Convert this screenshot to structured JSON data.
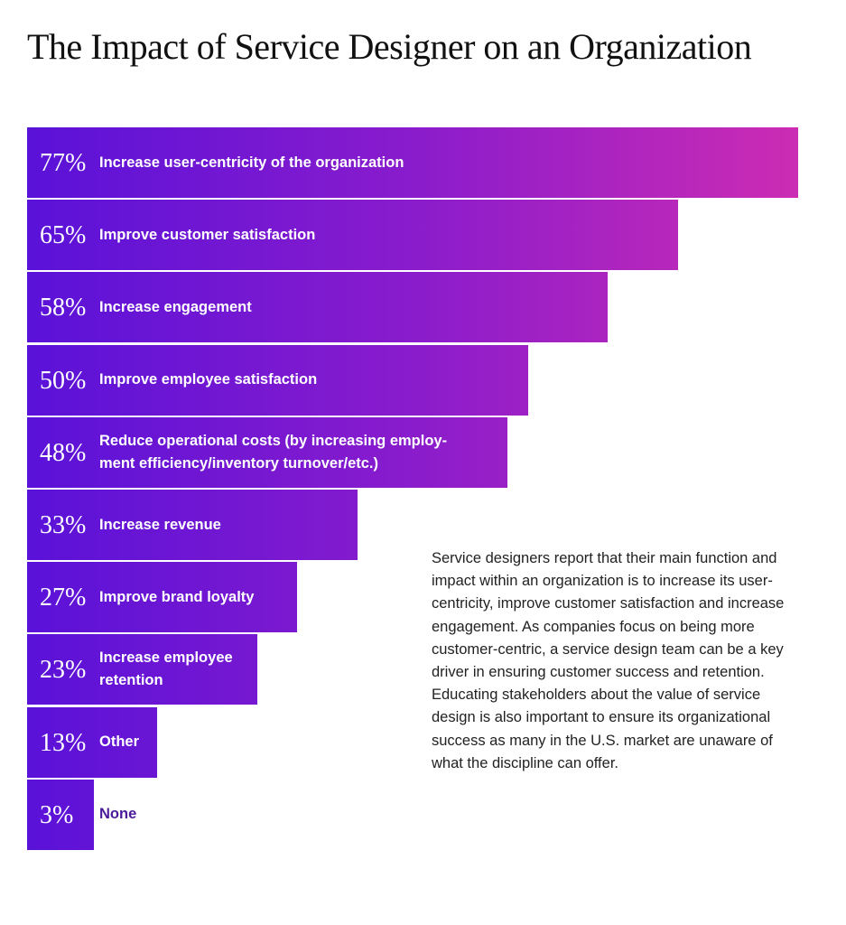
{
  "chart_data": {
    "type": "bar",
    "orientation": "horizontal",
    "title": "The Impact of Service Designer on an Organization",
    "unit": "%",
    "colors": {
      "gradient_start": "#5a12d8",
      "gradient_end": "#cc2cb3",
      "outside_label": "#4a1a9a"
    },
    "categories": [
      "Increase user-centricity of the organization",
      "Improve customer satisfaction",
      "Increase engagement",
      "Improve employee satisfaction",
      "Reduce operational costs (by increasing employ-ment efficiency/inventory turnover/etc.)",
      "Increase revenue",
      "Improve brand loyalty",
      "Increase employee retention",
      "Other",
      "None"
    ],
    "values": [
      77,
      65,
      58,
      50,
      48,
      33,
      27,
      23,
      13,
      3
    ],
    "value_labels": [
      "77%",
      "65%",
      "58%",
      "50%",
      "48%",
      "33%",
      "27%",
      "23%",
      "13%",
      "3%"
    ]
  },
  "description": "Service designers report that their main function and impact within an organization is to increase its user-centricity, improve customer satisfaction and increase engagement. As companies focus on being more customer-centric, a service design team can be a key driver in ensuring customer success and retention. Educating stakeholders about the value of service design is also important to ensure its organizational success as many in the U.S. market are unaware of what the discipline can offer."
}
